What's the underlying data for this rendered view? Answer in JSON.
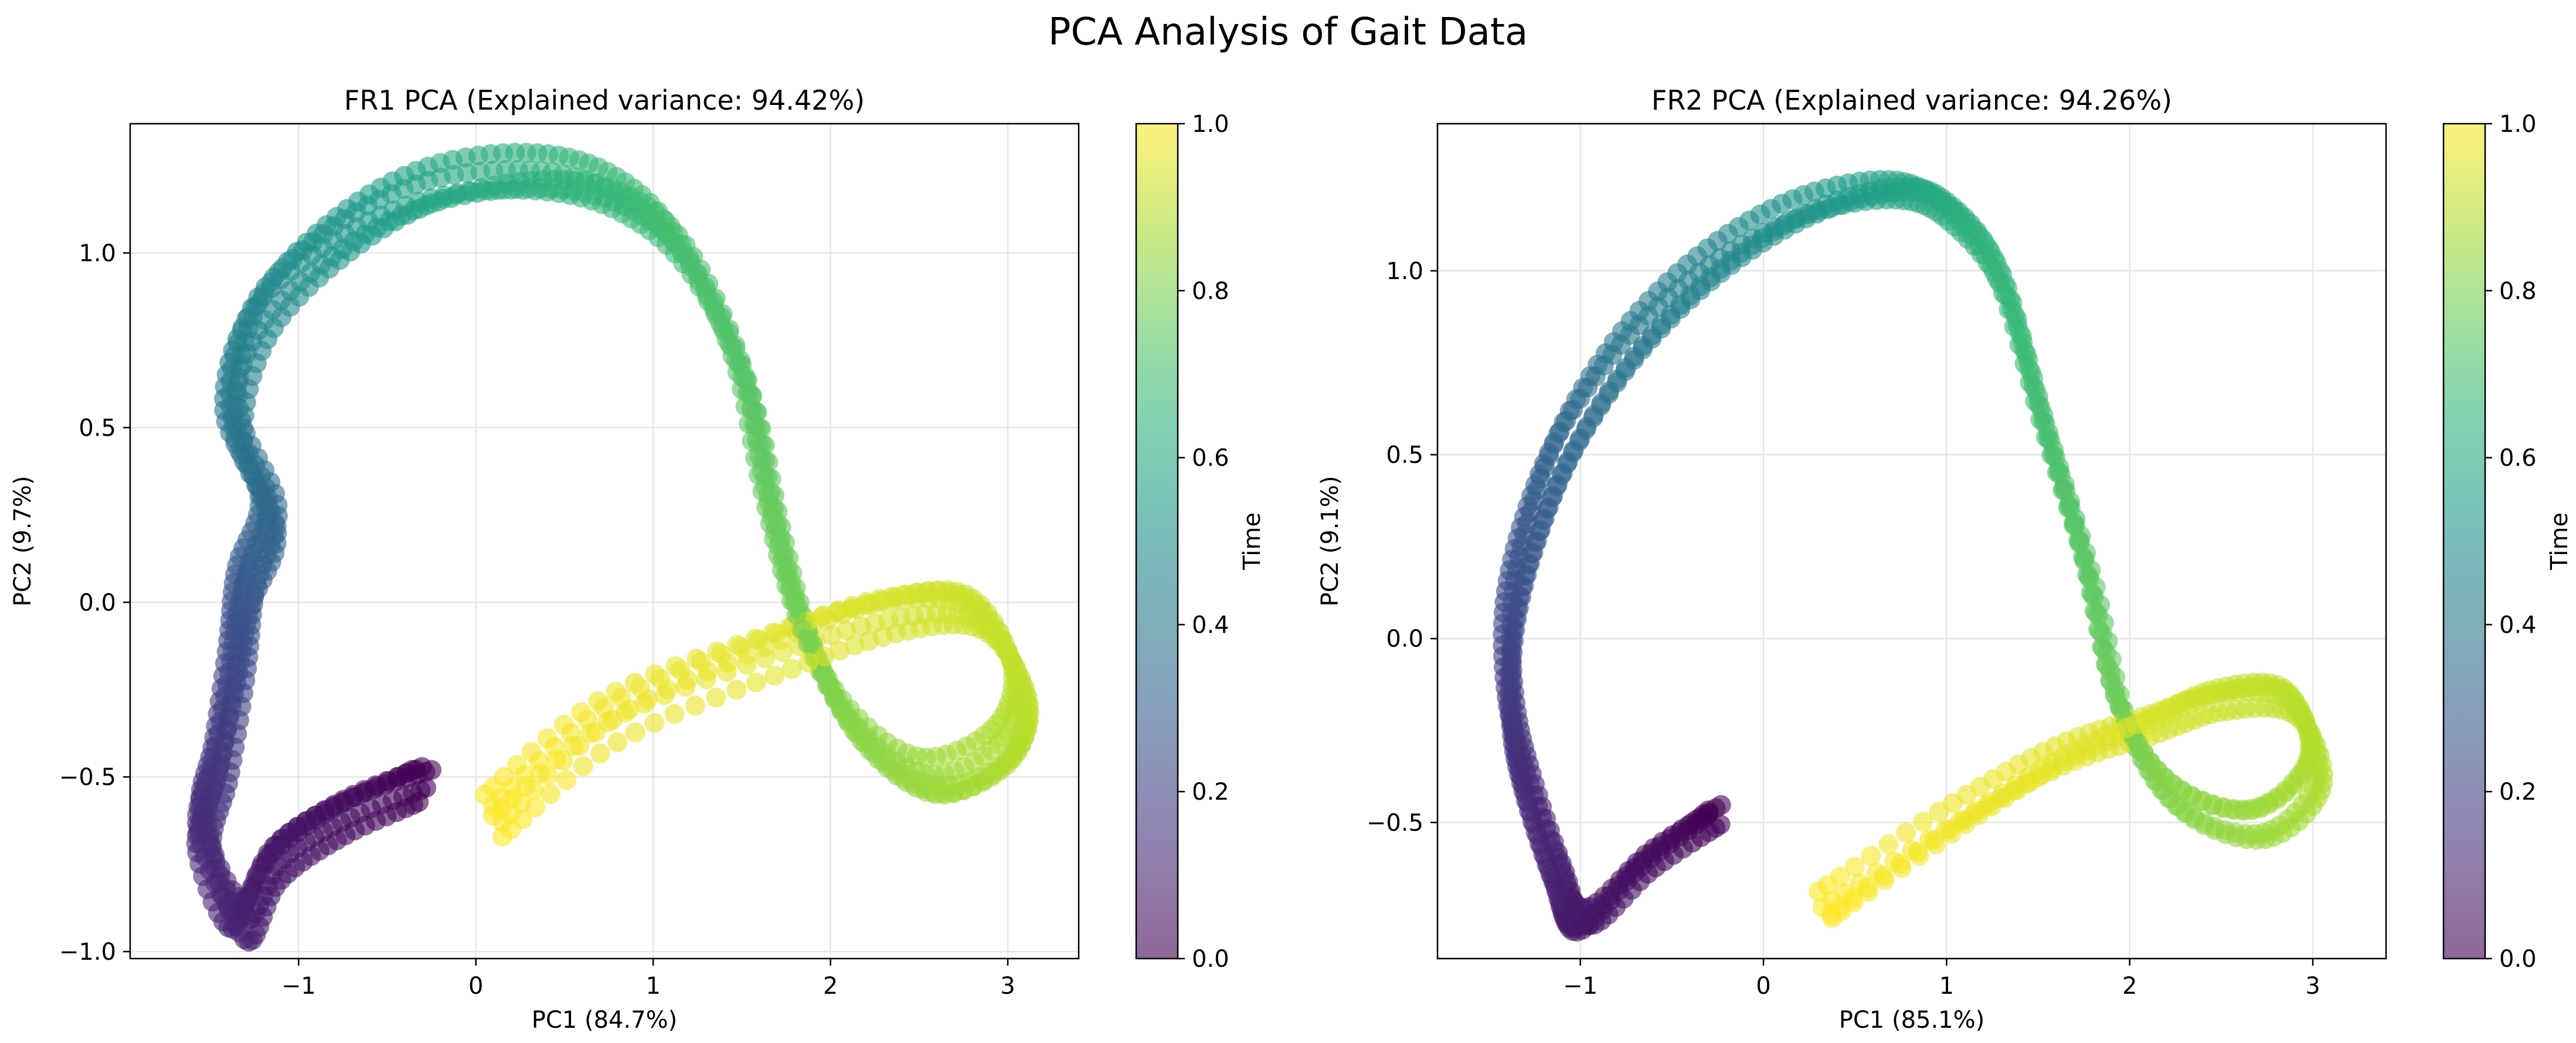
{
  "suptitle": "PCA Analysis of Gait Data",
  "chart_data": [
    {
      "type": "scatter",
      "title": "FR1 PCA (Explained variance: 94.42%)",
      "xlabel": "PC1 (84.7%)",
      "ylabel": "PC2 (9.7%)",
      "xlim": [
        -1.95,
        3.4
      ],
      "ylim": [
        -1.02,
        1.37
      ],
      "xticks": [
        -1,
        0,
        1,
        2,
        3
      ],
      "xtick_labels": [
        "−1",
        "0",
        "1",
        "2",
        "3"
      ],
      "yticks": [
        -1.0,
        -0.5,
        0.0,
        0.5,
        1.0
      ],
      "ytick_labels": [
        "−1.0",
        "−0.5",
        "0.0",
        "0.5",
        "1.0"
      ],
      "grid": true,
      "colormap": "viridis",
      "marker_alpha": 0.6,
      "colorbar": {
        "label": "Time",
        "range": [
          0,
          1
        ],
        "ticks": [
          "0.0",
          "0.2",
          "0.4",
          "0.6",
          "0.8",
          "1.0"
        ]
      },
      "trajectory_keypoints_t_x_y": [
        [
          0.0,
          -0.25,
          -0.48
        ],
        [
          0.03,
          -0.7,
          -0.56
        ],
        [
          0.06,
          -1.1,
          -0.68
        ],
        [
          0.09,
          -1.32,
          -0.85
        ],
        [
          0.12,
          -1.55,
          -0.6
        ],
        [
          0.16,
          -1.48,
          -0.4
        ],
        [
          0.22,
          -1.4,
          -0.12
        ],
        [
          0.28,
          -1.35,
          0.1
        ],
        [
          0.34,
          -1.22,
          0.3
        ],
        [
          0.4,
          -1.42,
          0.55
        ],
        [
          0.46,
          -1.28,
          0.82
        ],
        [
          0.52,
          -0.85,
          1.02
        ],
        [
          0.58,
          -0.3,
          1.15
        ],
        [
          0.63,
          0.3,
          1.18
        ],
        [
          0.67,
          0.8,
          1.12
        ],
        [
          0.7,
          1.2,
          0.95
        ],
        [
          0.73,
          1.55,
          0.6
        ],
        [
          0.76,
          1.72,
          0.22
        ],
        [
          0.79,
          1.9,
          -0.12
        ],
        [
          0.82,
          2.18,
          -0.4
        ],
        [
          0.85,
          2.6,
          -0.55
        ],
        [
          0.88,
          3.0,
          -0.45
        ],
        [
          0.9,
          3.08,
          -0.25
        ],
        [
          0.92,
          2.8,
          -0.02
        ],
        [
          0.94,
          2.3,
          0.0
        ],
        [
          0.96,
          1.6,
          -0.1
        ],
        [
          0.98,
          0.7,
          -0.28
        ],
        [
          1.0,
          0.05,
          -0.55
        ]
      ],
      "cycles": 5
    },
    {
      "type": "scatter",
      "title": "FR2 PCA (Explained variance: 94.26%)",
      "xlabel": "PC1 (85.1%)",
      "ylabel": "PC2 (9.1%)",
      "xlim": [
        -1.78,
        3.4
      ],
      "ylim": [
        -0.87,
        1.4
      ],
      "xticks": [
        -1,
        0,
        1,
        2,
        3
      ],
      "xtick_labels": [
        "−1",
        "0",
        "1",
        "2",
        "3"
      ],
      "yticks": [
        -0.5,
        0.0,
        0.5,
        1.0
      ],
      "ytick_labels": [
        "−0.5",
        "0.0",
        "0.5",
        "1.0"
      ],
      "grid": true,
      "colormap": "viridis",
      "marker_alpha": 0.6,
      "colorbar": {
        "label": "Time",
        "range": [
          0,
          1
        ],
        "ticks": [
          "0.0",
          "0.2",
          "0.4",
          "0.6",
          "0.8",
          "1.0"
        ]
      },
      "trajectory_keypoints_t_x_y": [
        [
          0.0,
          -0.22,
          -0.48
        ],
        [
          0.03,
          -0.6,
          -0.6
        ],
        [
          0.06,
          -0.95,
          -0.75
        ],
        [
          0.09,
          -1.1,
          -0.6
        ],
        [
          0.12,
          -1.28,
          -0.35
        ],
        [
          0.16,
          -1.38,
          -0.15
        ],
        [
          0.22,
          -1.4,
          0.1
        ],
        [
          0.28,
          -1.3,
          0.35
        ],
        [
          0.34,
          -1.1,
          0.6
        ],
        [
          0.4,
          -0.75,
          0.85
        ],
        [
          0.46,
          -0.3,
          1.05
        ],
        [
          0.52,
          0.2,
          1.18
        ],
        [
          0.58,
          0.7,
          1.22
        ],
        [
          0.62,
          1.0,
          1.15
        ],
        [
          0.66,
          1.3,
          0.95
        ],
        [
          0.7,
          1.55,
          0.55
        ],
        [
          0.74,
          1.8,
          0.15
        ],
        [
          0.78,
          2.0,
          -0.25
        ],
        [
          0.82,
          2.3,
          -0.48
        ],
        [
          0.85,
          2.75,
          -0.55
        ],
        [
          0.88,
          3.05,
          -0.4
        ],
        [
          0.9,
          2.9,
          -0.2
        ],
        [
          0.92,
          2.5,
          -0.18
        ],
        [
          0.94,
          2.1,
          -0.24
        ],
        [
          0.96,
          1.6,
          -0.32
        ],
        [
          0.98,
          1.0,
          -0.48
        ],
        [
          1.0,
          0.3,
          -0.7
        ]
      ],
      "cycles": 4
    }
  ]
}
